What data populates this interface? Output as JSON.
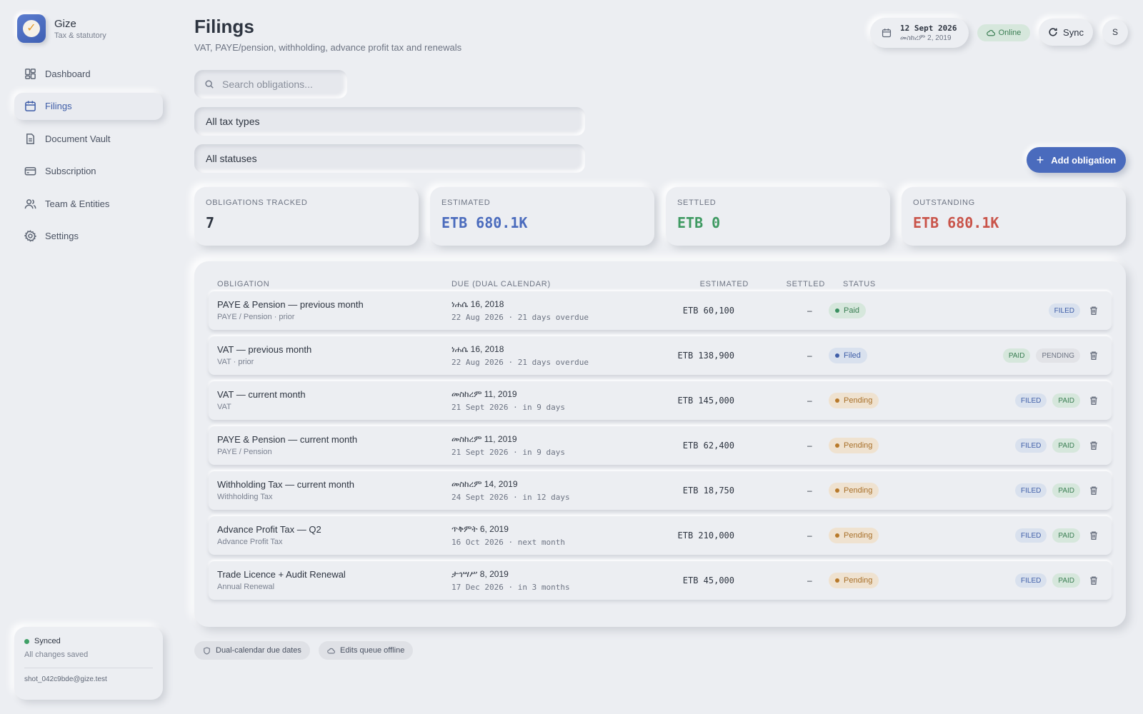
{
  "brand": {
    "name": "Gize",
    "subtitle": "Tax & statutory"
  },
  "sidebar": {
    "items": [
      {
        "label": "Dashboard",
        "icon": "dashboard-icon",
        "active": false
      },
      {
        "label": "Filings",
        "icon": "calendar-icon",
        "active": true
      },
      {
        "label": "Document Vault",
        "icon": "document-icon",
        "active": false
      },
      {
        "label": "Subscription",
        "icon": "credit-card-icon",
        "active": false
      },
      {
        "label": "Team & Entities",
        "icon": "users-icon",
        "active": false
      },
      {
        "label": "Settings",
        "icon": "gear-icon",
        "active": false
      }
    ],
    "sync": {
      "status": "Synced",
      "detail": "All changes saved",
      "email": "shot_042c9bde@gize.test"
    }
  },
  "header": {
    "title": "Filings",
    "subtitle": "VAT, PAYE/pension, withholding, advance profit tax and renewals",
    "date_gregorian": "12 Sept 2026",
    "date_ethiopian": "መስከረም 2, 2019",
    "online_label": "Online",
    "sync_label": "Sync",
    "avatar_initial": "S"
  },
  "filters": {
    "search_placeholder": "Search obligations...",
    "tax_type": "All tax types",
    "status": "All statuses",
    "add_label": "Add obligation"
  },
  "stats": [
    {
      "label": "OBLIGATIONS TRACKED",
      "value": "7",
      "color": "#2d3440"
    },
    {
      "label": "ESTIMATED",
      "value": "ETB 680.1K",
      "color": "#4a6bbd"
    },
    {
      "label": "SETTLED",
      "value": "ETB 0",
      "color": "#3f9a62"
    },
    {
      "label": "OUTSTANDING",
      "value": "ETB 680.1K",
      "color": "#c9544a"
    }
  ],
  "table": {
    "headers": {
      "obligation": "OBLIGATION",
      "due": "DUE (DUAL CALENDAR)",
      "estimated": "ESTIMATED",
      "settled": "SETTLED",
      "status": "STATUS"
    },
    "rows": [
      {
        "title": "PAYE & Pension — previous month",
        "sub": "PAYE / Pension · prior",
        "due_eth": "ነሐሴ 16, 2018",
        "due_greg": "22 Aug 2026 · 21 days overdue",
        "estimated": "ETB 60,100",
        "settled": "–",
        "status": "Paid",
        "status_kind": "paid",
        "actions": [
          {
            "label": "FILED",
            "kind": "filed"
          }
        ]
      },
      {
        "title": "VAT — previous month",
        "sub": "VAT · prior",
        "due_eth": "ነሐሴ 16, 2018",
        "due_greg": "22 Aug 2026 · 21 days overdue",
        "estimated": "ETB 138,900",
        "settled": "–",
        "status": "Filed",
        "status_kind": "filed",
        "actions": [
          {
            "label": "PAID",
            "kind": "paid"
          },
          {
            "label": "PENDING",
            "kind": "pending"
          }
        ]
      },
      {
        "title": "VAT — current month",
        "sub": "VAT",
        "due_eth": "መስከረም 11, 2019",
        "due_greg": "21 Sept 2026 · in 9 days",
        "estimated": "ETB 145,000",
        "settled": "–",
        "status": "Pending",
        "status_kind": "pending",
        "actions": [
          {
            "label": "FILED",
            "kind": "filed"
          },
          {
            "label": "PAID",
            "kind": "paid"
          }
        ]
      },
      {
        "title": "PAYE & Pension — current month",
        "sub": "PAYE / Pension",
        "due_eth": "መስከረም 11, 2019",
        "due_greg": "21 Sept 2026 · in 9 days",
        "estimated": "ETB 62,400",
        "settled": "–",
        "status": "Pending",
        "status_kind": "pending",
        "actions": [
          {
            "label": "FILED",
            "kind": "filed"
          },
          {
            "label": "PAID",
            "kind": "paid"
          }
        ]
      },
      {
        "title": "Withholding Tax — current month",
        "sub": "Withholding Tax",
        "due_eth": "መስከረም 14, 2019",
        "due_greg": "24 Sept 2026 · in 12 days",
        "estimated": "ETB 18,750",
        "settled": "–",
        "status": "Pending",
        "status_kind": "pending",
        "actions": [
          {
            "label": "FILED",
            "kind": "filed"
          },
          {
            "label": "PAID",
            "kind": "paid"
          }
        ]
      },
      {
        "title": "Advance Profit Tax — Q2",
        "sub": "Advance Profit Tax",
        "due_eth": "ጥቅምት 6, 2019",
        "due_greg": "16 Oct 2026 · next month",
        "estimated": "ETB 210,000",
        "settled": "–",
        "status": "Pending",
        "status_kind": "pending",
        "actions": [
          {
            "label": "FILED",
            "kind": "filed"
          },
          {
            "label": "PAID",
            "kind": "paid"
          }
        ]
      },
      {
        "title": "Trade Licence + Audit Renewal",
        "sub": "Annual Renewal",
        "due_eth": "ታኅሣሥ 8, 2019",
        "due_greg": "17 Dec 2026 · in 3 months",
        "estimated": "ETB 45,000",
        "settled": "–",
        "status": "Pending",
        "status_kind": "pending",
        "actions": [
          {
            "label": "FILED",
            "kind": "filed"
          },
          {
            "label": "PAID",
            "kind": "paid"
          }
        ]
      }
    ]
  },
  "footer": {
    "chips": [
      {
        "label": "Dual-calendar due dates",
        "icon": "shield-icon"
      },
      {
        "label": "Edits queue offline",
        "icon": "cloud-icon"
      }
    ]
  }
}
